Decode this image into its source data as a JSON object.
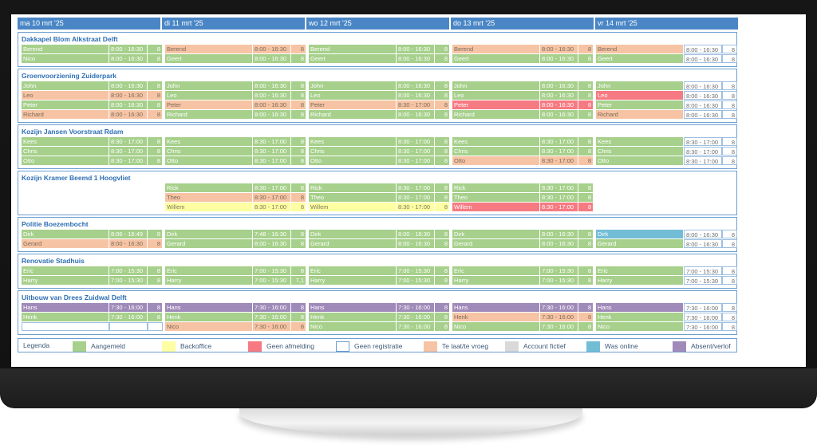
{
  "days": [
    "ma 10 mrt '25",
    "di 11 mrt '25",
    "wo 12 mrt '25",
    "do 13 mrt '25",
    "vr 14 mrt '25"
  ],
  "projects": [
    {
      "title": "Dakkapel Blom Alkstraat Delft",
      "rows": [
        [
          [
            "Berend",
            "8:00 - 16:30",
            "8",
            "green"
          ],
          [
            "Berend",
            "8:00 - 16:30",
            "8",
            "salmon"
          ],
          [
            "Berend",
            "8:00 - 16:30",
            "8",
            "green"
          ],
          [
            "Berend",
            "8:00 - 16:30",
            "8",
            "salmon"
          ],
          [
            "Berend",
            "8:00 - 16:30",
            "8",
            "salmon"
          ]
        ],
        [
          [
            "Nico",
            "8:00 - 16:30",
            "8",
            "green"
          ],
          [
            "Geert",
            "8:00 - 16:30",
            "8",
            "green"
          ],
          [
            "Geert",
            "8:00 - 16:30",
            "8",
            "green"
          ],
          [
            "Geert",
            "8:00 - 16:30",
            "8",
            "green"
          ],
          [
            "Geert",
            "8:00 - 16:30",
            "8",
            "green"
          ]
        ]
      ]
    },
    {
      "title": "Groenvoorziening Zuiderpark",
      "rows": [
        [
          [
            "John",
            "8:00 - 16:30",
            "8",
            "green"
          ],
          [
            "John",
            "8:00 - 16:30",
            "8",
            "green"
          ],
          [
            "John",
            "8:00 - 16:30",
            "8",
            "green"
          ],
          [
            "John",
            "8:00 - 16:30",
            "8",
            "green"
          ],
          [
            "John",
            "8:00 - 16:30",
            "8",
            "green"
          ]
        ],
        [
          [
            "Leo",
            "8:00 - 16:30",
            "8",
            "salmon"
          ],
          [
            "Leo",
            "8:00 - 16:30",
            "8",
            "green"
          ],
          [
            "Leo",
            "8:00 - 16:30",
            "8",
            "green"
          ],
          [
            "Leo",
            "8:00 - 16:30",
            "8",
            "green"
          ],
          [
            "Leo",
            "8:00 - 16:30",
            "8",
            "red"
          ]
        ],
        [
          [
            "Peter",
            "8:00 - 16:30",
            "8",
            "green"
          ],
          [
            "Peter",
            "8:00 - 16:30",
            "8",
            "salmon"
          ],
          [
            "Peter",
            "8:30 - 17:00",
            "8",
            "salmon"
          ],
          [
            "Peter",
            "8:00 - 16:30",
            "8",
            "red"
          ],
          [
            "Peter",
            "8:00 - 16:30",
            "8",
            "green"
          ]
        ],
        [
          [
            "Richard",
            "8:00 - 16:30",
            "8",
            "salmon"
          ],
          [
            "Richard",
            "8:00 - 16:30",
            "8",
            "green"
          ],
          [
            "Richard",
            "8:00 - 16:30",
            "8",
            "green"
          ],
          [
            "Richard",
            "8:00 - 16:30",
            "8",
            "green"
          ],
          [
            "Richard",
            "8:00 - 16:30",
            "8",
            "salmon"
          ]
        ]
      ]
    },
    {
      "title": "Kozijn Jansen Voorstraat Rdam",
      "rows": [
        [
          [
            "Kees",
            "8:30 - 17:00",
            "8",
            "green"
          ],
          [
            "Kees",
            "8:30 - 17:00",
            "8",
            "green"
          ],
          [
            "Kees",
            "8:30 - 17:00",
            "8",
            "green"
          ],
          [
            "Kees",
            "8:30 - 17:00",
            "8",
            "green"
          ],
          [
            "Kees",
            "8:30 - 17:00",
            "8",
            "green"
          ]
        ],
        [
          [
            "Chris",
            "8:30 - 17:00",
            "8",
            "green"
          ],
          [
            "Chris",
            "8:30 - 17:00",
            "8",
            "green"
          ],
          [
            "Chris",
            "8:30 - 17:00",
            "8",
            "green"
          ],
          [
            "Chris",
            "8:30 - 17:00",
            "8",
            "green"
          ],
          [
            "Chris",
            "8:30 - 17:00",
            "8",
            "green"
          ]
        ],
        [
          [
            "Otto",
            "8:30 - 17:00",
            "8",
            "green"
          ],
          [
            "Otto",
            "8:30 - 17:00",
            "8",
            "green"
          ],
          [
            "Otto",
            "8:30 - 17:00",
            "8",
            "green"
          ],
          [
            "Otto",
            "8:30 - 17:00",
            "8",
            "salmon"
          ],
          [
            "Otto",
            "8:30 - 17:00",
            "8",
            "green"
          ]
        ]
      ]
    },
    {
      "title": "Kozijn Kramer Beemd 1 Hoogvliet",
      "rows": [
        [
          null,
          [
            "Rick",
            "8:30 - 17:00",
            "8",
            "green"
          ],
          [
            "Rick",
            "8:30 - 17:00",
            "8",
            "green"
          ],
          [
            "Rick",
            "8:30 - 17:00",
            "8",
            "green"
          ],
          null
        ],
        [
          null,
          [
            "Theo",
            "8:30 - 17:00",
            "8",
            "salmon"
          ],
          [
            "Theo",
            "8:30 - 17:00",
            "8",
            "green"
          ],
          [
            "Theo",
            "8:30 - 17:00",
            "8",
            "green"
          ],
          null
        ],
        [
          null,
          [
            "Willem",
            "8:30 - 17:00",
            "8",
            "yellow"
          ],
          [
            "Willem",
            "8:30 - 17:00",
            "8",
            "yellow"
          ],
          [
            "Willem",
            "8:30 - 17:00",
            "8",
            "red"
          ],
          null
        ]
      ]
    },
    {
      "title": "Politie Boezembocht",
      "rows": [
        [
          [
            "Dirk",
            "8:06 - 16:49",
            "8",
            "green"
          ],
          [
            "Dirk",
            "7:48 - 16:30",
            "8",
            "green"
          ],
          [
            "Dirk",
            "8:00 - 16:30",
            "8",
            "green"
          ],
          [
            "Dirk",
            "8:00 - 16:30",
            "8",
            "green"
          ],
          [
            "Dirk",
            "8:00 - 16:30",
            "8",
            "blue"
          ]
        ],
        [
          [
            "Gerard",
            "8:00 - 16:30",
            "8",
            "salmon"
          ],
          [
            "Gerard",
            "8:00 - 16:30",
            "8",
            "green"
          ],
          [
            "Gerard",
            "8:00 - 16:30",
            "8",
            "green"
          ],
          [
            "Gerard",
            "8:00 - 16:30",
            "8",
            "green"
          ],
          [
            "Gerard",
            "8:00 - 16:30",
            "8",
            "green"
          ]
        ]
      ]
    },
    {
      "title": "Renovatie Stadhuis",
      "rows": [
        [
          [
            "Eric",
            "7:00 - 15:30",
            "8",
            "green"
          ],
          [
            "Eric",
            "7:00 - 15:30",
            "8",
            "green"
          ],
          [
            "Eric",
            "7:00 - 15:30",
            "8",
            "green"
          ],
          [
            "Eric",
            "7:00 - 15:30",
            "8",
            "green"
          ],
          [
            "Eric",
            "7:00 - 15:30",
            "8",
            "green"
          ]
        ],
        [
          [
            "Harry",
            "7:00 - 15:30",
            "8",
            "green"
          ],
          [
            "Harry",
            "7:00 - 15:30",
            "7,1",
            "green"
          ],
          [
            "Harry",
            "7:00 - 15:30",
            "8",
            "green"
          ],
          [
            "Harry",
            "7:00 - 15:30",
            "8",
            "green"
          ],
          [
            "Harry",
            "7:00 - 15:30",
            "8",
            "green"
          ]
        ]
      ]
    },
    {
      "title": "Uitbouw van Drees Zuidwal Delft",
      "rows": [
        [
          [
            "Hans",
            "7:30 - 16:00",
            "8",
            "purple"
          ],
          [
            "Hans",
            "7:30 - 16:00",
            "8",
            "purple"
          ],
          [
            "Hans",
            "7:30 - 16:00",
            "8",
            "purple"
          ],
          [
            "Hans",
            "7:30 - 16:00",
            "8",
            "purple"
          ],
          [
            "Hans",
            "7:30 - 16:00",
            "8",
            "purple"
          ]
        ],
        [
          [
            "Henk",
            "7:30 - 16:00",
            "8",
            "green"
          ],
          [
            "Henk",
            "7:30 - 16:00",
            "8",
            "green"
          ],
          [
            "Henk",
            "7:30 - 16:00",
            "8",
            "green"
          ],
          [
            "Henk",
            "7:30 - 16:00",
            "8",
            "salmon"
          ],
          [
            "Henk",
            "7:30 - 16:00",
            "8",
            "green"
          ]
        ],
        [
          [
            "",
            "",
            "",
            "white"
          ],
          [
            "Nico",
            "7:30 - 16:00",
            "8",
            "salmon"
          ],
          [
            "Nico",
            "7:30 - 16:00",
            "8",
            "green"
          ],
          [
            "Nico",
            "7:30 - 16:00",
            "8",
            "green"
          ],
          [
            "Nico",
            "7:30 - 16:00",
            "8",
            "green"
          ]
        ]
      ]
    }
  ],
  "legend": {
    "label": "Legenda",
    "items": [
      {
        "label": "Aangemeld",
        "color": "#a6d08b"
      },
      {
        "label": "Backoffice",
        "color": "#fefea2"
      },
      {
        "label": "Geen afmelding",
        "color": "#f67a82"
      },
      {
        "label": "Geen registratie",
        "color": "#ffffff"
      },
      {
        "label": "Te laat/te vroeg",
        "color": "#f6c4a4"
      },
      {
        "label": "Account fictief",
        "color": "#d9d9d9"
      },
      {
        "label": "Was online",
        "color": "#72bdd6"
      },
      {
        "label": "Absent/verlof",
        "color": "#a08ab9"
      }
    ]
  }
}
